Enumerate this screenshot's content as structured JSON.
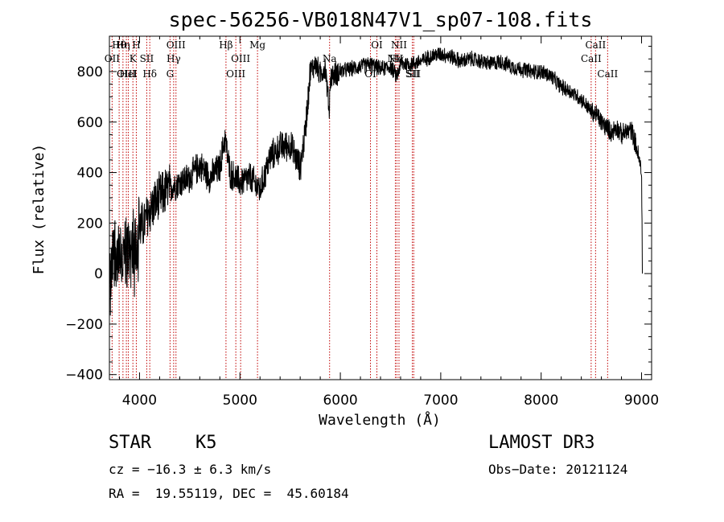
{
  "chart_data": {
    "type": "line",
    "title": "spec-56256-VB018N47V1_sp07-108.fits",
    "xlabel": "Wavelength (Å)",
    "ylabel": "Flux (relative)",
    "xlim": [
      3700,
      9100
    ],
    "ylim": [
      -420,
      940
    ],
    "xticks": [
      4000,
      5000,
      6000,
      7000,
      8000,
      9000
    ],
    "yticks": [
      -400,
      -200,
      0,
      200,
      400,
      600,
      800
    ],
    "spectrum_trend": {
      "x": [
        3700,
        3750,
        3800,
        3850,
        3900,
        3950,
        4000,
        4050,
        4100,
        4200,
        4300,
        4400,
        4500,
        4600,
        4700,
        4800,
        4850,
        4900,
        5000,
        5100,
        5200,
        5300,
        5400,
        5500,
        5600,
        5650,
        5700,
        5750,
        5800,
        5850,
        5890,
        5900,
        5950,
        6000,
        6100,
        6200,
        6300,
        6400,
        6500,
        6563,
        6600,
        6700,
        6800,
        6900,
        7000,
        7100,
        7200,
        7300,
        7400,
        7500,
        7600,
        7700,
        7800,
        7900,
        8000,
        8100,
        8200,
        8300,
        8400,
        8500,
        8550,
        8600,
        8650,
        8700,
        8750,
        8800,
        8850,
        8900,
        8950,
        9000,
        9010
      ],
      "y": [
        -100,
        120,
        30,
        80,
        90,
        120,
        180,
        200,
        250,
        300,
        340,
        360,
        380,
        430,
        380,
        420,
        540,
        400,
        360,
        380,
        330,
        460,
        500,
        510,
        420,
        560,
        800,
        830,
        790,
        820,
        640,
        780,
        790,
        800,
        810,
        820,
        830,
        810,
        820,
        780,
        830,
        830,
        840,
        860,
        870,
        860,
        840,
        850,
        840,
        830,
        840,
        820,
        810,
        800,
        800,
        780,
        740,
        720,
        690,
        640,
        630,
        600,
        580,
        560,
        580,
        550,
        560,
        570,
        500,
        400,
        0
      ]
    },
    "emission_lines": [
      {
        "name": "Hθ",
        "x": 3797
      },
      {
        "name": "OII",
        "x": 3727
      },
      {
        "name": "OIII",
        "x": 3869
      },
      {
        "name": "Hη",
        "x": 3835
      },
      {
        "name": "K",
        "x": 3934
      },
      {
        "name": "HeI",
        "x": 3889
      },
      {
        "name": "H",
        "x": 3968
      },
      {
        "name": "SII",
        "x": 4072
      },
      {
        "name": "Hδ",
        "x": 4102
      },
      {
        "name": "OIII",
        "x": 4363
      },
      {
        "name": "Hγ",
        "x": 4340
      },
      {
        "name": "G",
        "x": 4304
      },
      {
        "name": "Hβ",
        "x": 4861
      },
      {
        "name": "OIII",
        "x": 5007
      },
      {
        "name": "OIII",
        "x": 4959
      },
      {
        "name": "Mg",
        "x": 5175
      },
      {
        "name": "Na",
        "x": 5893
      },
      {
        "name": "OI",
        "x": 6300
      },
      {
        "name": "OI",
        "x": 6364
      },
      {
        "name": "Hα",
        "x": 6563
      },
      {
        "name": "SII",
        "x": 6717
      },
      {
        "name": "NII",
        "x": 6584
      },
      {
        "name": "NII",
        "x": 6548
      },
      {
        "name": "SII",
        "x": 6731
      },
      {
        "name": "CaII",
        "x": 8542
      },
      {
        "name": "CaII",
        "x": 8498
      },
      {
        "name": "CaII",
        "x": 8662
      }
    ]
  },
  "info": {
    "object_type": "STAR",
    "subclass": "K5",
    "cz_text": "cz = −16.3 ± 6.3 km/s",
    "coords_text": "RA =  19.55119, DEC =  45.60184",
    "survey": "LAMOST DR3",
    "obs_date": "Obs−Date: 20121124"
  }
}
